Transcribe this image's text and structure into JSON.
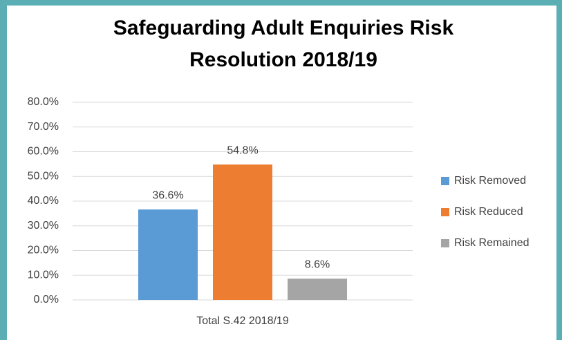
{
  "chart_data": {
    "type": "bar",
    "title": "Safeguarding Adult Enquiries Risk Resolution 2018/19",
    "categories": [
      "Total S.42 2018/19"
    ],
    "series": [
      {
        "name": "Risk Removed",
        "color": "#5b9bd5",
        "values": [
          36.6
        ],
        "value_labels": [
          "36.6%"
        ]
      },
      {
        "name": "Risk Reduced",
        "color": "#ed7d31",
        "values": [
          54.8
        ],
        "value_labels": [
          "54.8%"
        ]
      },
      {
        "name": "Risk Remained",
        "color": "#a5a5a5",
        "values": [
          8.6
        ],
        "value_labels": [
          "8.6%"
        ]
      }
    ],
    "ylim": [
      0,
      80
    ],
    "yticks": [
      {
        "value": 0,
        "label": "0.0%"
      },
      {
        "value": 10,
        "label": "10.0%"
      },
      {
        "value": 20,
        "label": "20.0%"
      },
      {
        "value": 30,
        "label": "30.0%"
      },
      {
        "value": 40,
        "label": "40.0%"
      },
      {
        "value": 50,
        "label": "50.0%"
      },
      {
        "value": 60,
        "label": "60.0%"
      },
      {
        "value": 70,
        "label": "70.0%"
      },
      {
        "value": 80,
        "label": "80.0%"
      }
    ],
    "grid": true,
    "legend": "right"
  }
}
